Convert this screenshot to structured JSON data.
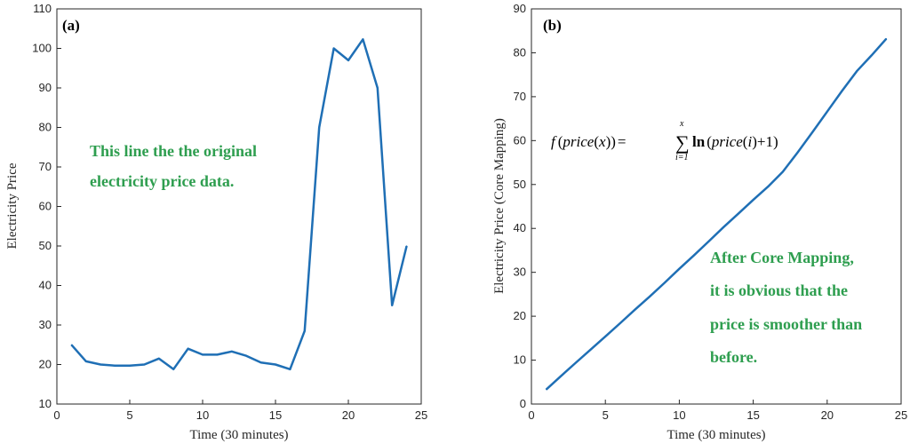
{
  "chart_data": [
    {
      "type": "line",
      "panel_label": "(a)",
      "xlabel": "Time (30 minutes)",
      "ylabel": "Electricity Price",
      "xlim": [
        0,
        25
      ],
      "ylim": [
        10,
        110
      ],
      "xticks": [
        0,
        5,
        10,
        15,
        20,
        25
      ],
      "yticks": [
        10,
        20,
        30,
        40,
        50,
        60,
        70,
        80,
        90,
        100,
        110
      ],
      "grid": false,
      "color": "#1f6fb5",
      "x": [
        1,
        2,
        3,
        4,
        5,
        6,
        7,
        8,
        9,
        10,
        11,
        12,
        13,
        14,
        15,
        16,
        17,
        18,
        19,
        20,
        21,
        22,
        23,
        24
      ],
      "y": [
        25,
        20.8,
        20,
        19.7,
        19.7,
        20,
        21.5,
        18.8,
        24,
        22.5,
        22.5,
        23.3,
        22.2,
        20.5,
        20,
        18.8,
        28.5,
        80,
        100,
        97,
        102.3,
        90,
        35,
        50
      ],
      "annotation": [
        "This line the the original",
        "electricity price data."
      ]
    },
    {
      "type": "line",
      "panel_label": "(b)",
      "xlabel": "Time (30 minutes)",
      "ylabel": "Electricity Price (Core Mapping)",
      "xlim": [
        0,
        25
      ],
      "ylim": [
        0,
        90
      ],
      "xticks": [
        0,
        5,
        10,
        15,
        20,
        25
      ],
      "yticks": [
        0,
        10,
        20,
        30,
        40,
        50,
        60,
        70,
        80,
        90
      ],
      "grid": false,
      "color": "#1f6fb5",
      "x": [
        1,
        2,
        3,
        4,
        5,
        6,
        7,
        8,
        9,
        10,
        11,
        12,
        13,
        14,
        15,
        16,
        17,
        18,
        19,
        20,
        21,
        22,
        23,
        24
      ],
      "y": [
        3.3,
        6.4,
        9.4,
        12.4,
        15.4,
        18.4,
        21.5,
        24.5,
        27.6,
        30.8,
        33.9,
        37.1,
        40.3,
        43.4,
        46.5,
        49.5,
        52.9,
        57.3,
        61.9,
        66.6,
        71.3,
        75.8,
        79.4,
        83.2
      ],
      "annotation": [
        "After Core Mapping,",
        "it is obvious that the",
        "price is smoother than",
        "before."
      ],
      "formula": {
        "f": "f",
        "arg_open": "(",
        "price": "price",
        "x": "x",
        "arg_close": ")",
        "equals": "=",
        "sum": "∑",
        "sum_upper": "x",
        "sum_lower": "i=1",
        "ln": "ln",
        "i": "i",
        "plus_one": "+1"
      }
    }
  ]
}
